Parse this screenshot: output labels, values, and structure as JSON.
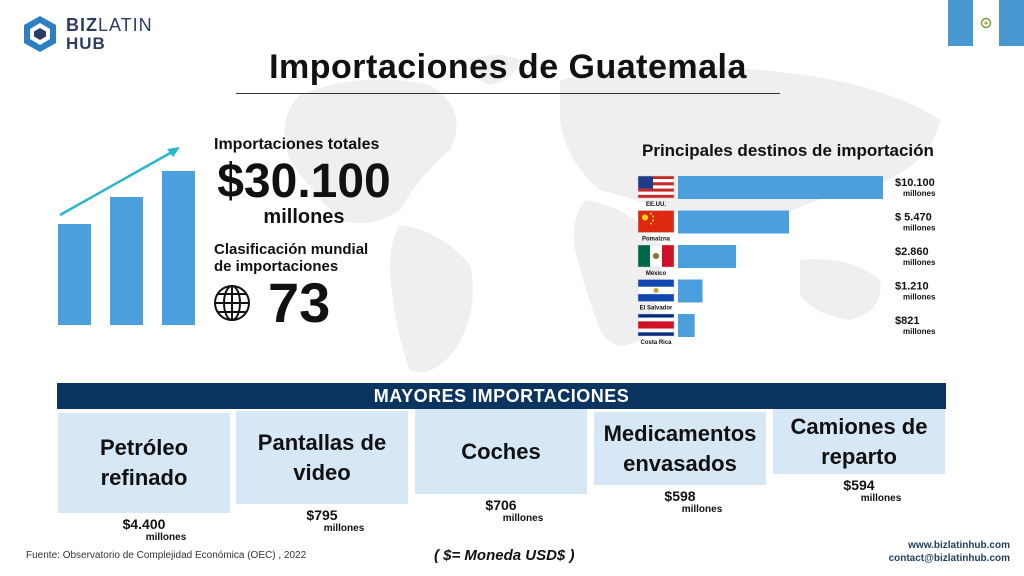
{
  "brand": {
    "word1_a": "BIZ",
    "word1_b": "LATIN",
    "word2": "HUB"
  },
  "title": "Importaciones de Guatemala",
  "totals": {
    "label": "Importaciones totales",
    "value": "$30.100",
    "unit": "millones"
  },
  "ranking": {
    "label_line1": "Clasificación mundial",
    "label_line2": "de importaciones",
    "value": "73"
  },
  "colors": {
    "bar_blue": "#4a9fdc",
    "arrow_teal": "#29b6c9",
    "band_navy": "#0b3560",
    "box_light": "#d6e7f5",
    "map_gray": "#eeeeee",
    "flag_blue": "#4997d0"
  },
  "icons": {
    "growth": "bar-chart-arrow-icon",
    "globe": "globe-icon",
    "logo": "bizlatinhub-logo-icon"
  },
  "chart_data": [
    {
      "type": "bar",
      "title": "Principales destinos de importación",
      "orientation": "horizontal",
      "categories": [
        "EE.UU.",
        "Pomalzna",
        "México",
        "El Salvador",
        "Costa Rica"
      ],
      "values": [
        10100,
        5470,
        2860,
        1210,
        821
      ],
      "value_labels": [
        "$10.100",
        "$ 5.470",
        "$2.860",
        "$1.210",
        "$821"
      ],
      "unit_label": "millones",
      "flags": [
        "usa",
        "china",
        "mexico",
        "el-salvador",
        "costa-rica"
      ]
    },
    {
      "type": "bar",
      "title": "MAYORES IMPORTACIONES",
      "categories": [
        "Petróleo refinado",
        "Pantallas de video",
        "Coches",
        "Medicamentos envasados",
        "Camiones de reparto"
      ],
      "values": [
        4400,
        795,
        706,
        598,
        594
      ],
      "value_labels": [
        "$4.400",
        "$795",
        "$706",
        "$598",
        "$594"
      ],
      "unit_label": "millones"
    }
  ],
  "footer": {
    "source": "Fuente: Observatorio de Complejidad Económica (OEC) , 2022",
    "currency": "( $= Moneda USD$ )",
    "website": "www.bizlatinhub.com",
    "email": "contact@bizlatinhub.com"
  }
}
